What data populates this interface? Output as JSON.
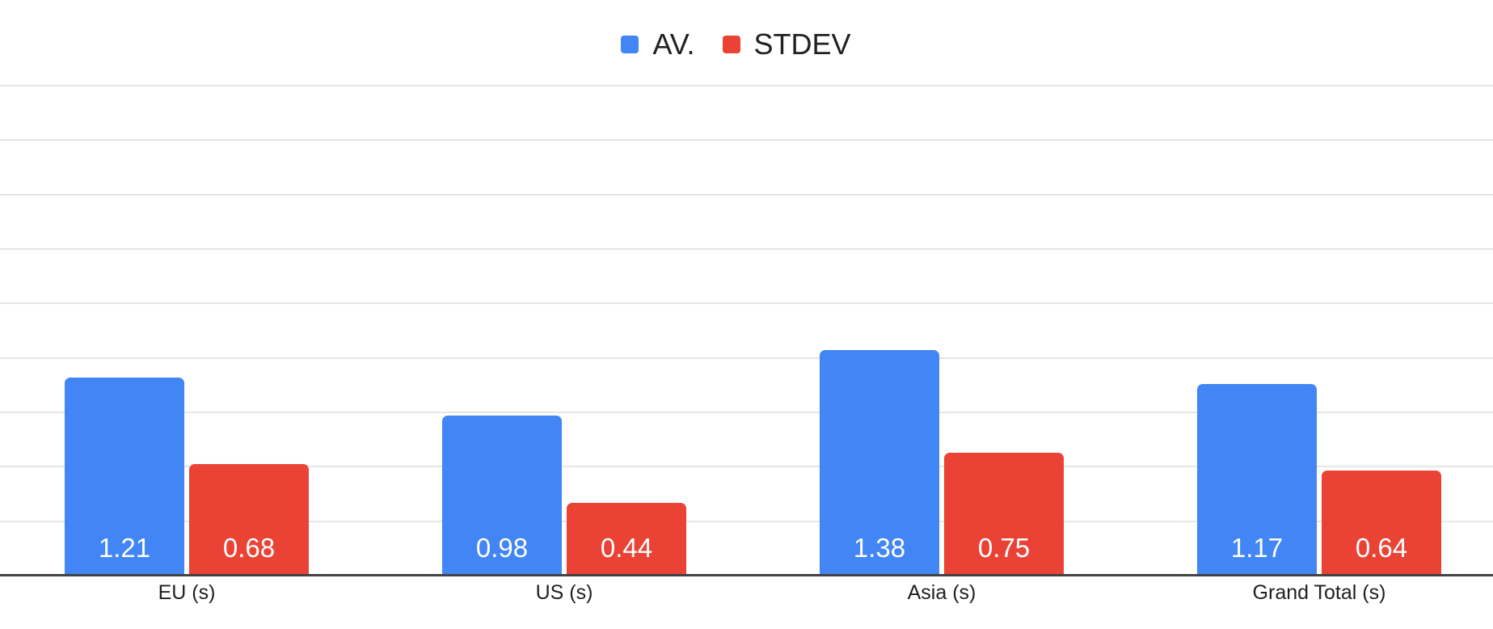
{
  "chart_data": {
    "type": "bar",
    "title": "",
    "categories": [
      "EU (s)",
      "US (s)",
      "Asia (s)",
      "Grand Total (s)"
    ],
    "series": [
      {
        "name": "AV.",
        "color": "#4285f4",
        "values": [
          1.21,
          0.98,
          1.38,
          1.17
        ]
      },
      {
        "name": "STDEV",
        "color": "#ea4335",
        "values": [
          0.68,
          0.44,
          0.75,
          0.64
        ]
      }
    ],
    "data_labels": {
      "show": true,
      "position": "inside-base",
      "color": "#ffffff",
      "decimals": 2
    },
    "xlabel": "",
    "ylabel": "",
    "y_axis_tick_labels_visible": false,
    "ylim": [
      0,
      3
    ],
    "grid": true,
    "gridline_count": 9,
    "legend_position": "top-center"
  },
  "colors": {
    "background": "#ffffff",
    "gridline": "#e6e6e6",
    "axis_line": "#424242",
    "category_label_text": "#1f1f1f",
    "legend_text": "#202124"
  }
}
